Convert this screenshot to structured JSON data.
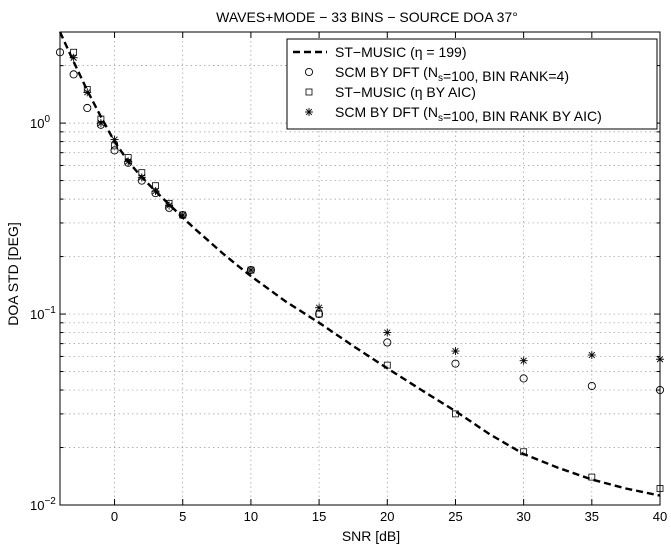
{
  "chart_data": {
    "type": "scatter",
    "title": "WAVES+MODE − 33 BINS − SOURCE DOA 37°",
    "xlabel": "SNR [dB]",
    "ylabel": "DOA STD [DEG]",
    "xlim": [
      -4,
      40
    ],
    "ylim": [
      0.01,
      3
    ],
    "yscale": "log",
    "grid": true,
    "legend_position": "top-right",
    "x_ticks": [
      {
        "value": 0,
        "label": "0"
      },
      {
        "value": 5,
        "label": "5"
      },
      {
        "value": 10,
        "label": "10"
      },
      {
        "value": 15,
        "label": "15"
      },
      {
        "value": 20,
        "label": "20"
      },
      {
        "value": 25,
        "label": "25"
      },
      {
        "value": 30,
        "label": "30"
      },
      {
        "value": 35,
        "label": "35"
      },
      {
        "value": 40,
        "label": "40"
      }
    ],
    "y_ticks": [
      {
        "value": 1,
        "base": "10",
        "exp": "0"
      },
      {
        "value": 0.1,
        "base": "10",
        "exp": "−1"
      },
      {
        "value": 0.01,
        "base": "10",
        "exp": "−2"
      }
    ],
    "series": [
      {
        "name": "ST−MUSIC (η = 199)",
        "legend_parts": [
          {
            "t": "ST−MUSIC (η = 199)"
          }
        ],
        "style": "dashed-line",
        "color": "#000000",
        "x": [
          -4,
          -3,
          -2,
          -1,
          0,
          1,
          2,
          3,
          4,
          5,
          6,
          7,
          8,
          9,
          10,
          12.5,
          15,
          17.5,
          20,
          22.5,
          25,
          27.5,
          30,
          32.5,
          35,
          37.5,
          40
        ],
        "y": [
          3.0,
          2.1,
          1.48,
          1.08,
          0.8,
          0.63,
          0.52,
          0.44,
          0.375,
          0.32,
          0.275,
          0.238,
          0.206,
          0.18,
          0.158,
          0.117,
          0.09,
          0.068,
          0.052,
          0.04,
          0.031,
          0.0235,
          0.0185,
          0.0157,
          0.0136,
          0.0122,
          0.0112
        ]
      },
      {
        "name": "SCM BY DFT (N_s=100, BIN RANK=4)",
        "legend_parts": [
          {
            "t": "SCM BY DFT (N"
          },
          {
            "t": "s",
            "sub": true
          },
          {
            "t": "=100, BIN RANK=4)"
          }
        ],
        "style": "marker",
        "marker": "circle",
        "color": "#000000",
        "x": [
          -4,
          -3,
          -2,
          -1,
          0,
          1,
          2,
          3,
          4,
          5,
          10,
          15,
          20,
          25,
          30,
          35,
          40
        ],
        "y": [
          2.35,
          1.8,
          1.2,
          0.98,
          0.72,
          0.62,
          0.5,
          0.43,
          0.36,
          0.33,
          0.17,
          0.1,
          0.071,
          0.055,
          0.046,
          0.042,
          0.04
        ]
      },
      {
        "name": "ST−MUSIC (η BY AIC)",
        "legend_parts": [
          {
            "t": "ST−MUSIC (η BY AIC)"
          }
        ],
        "style": "marker",
        "marker": "square",
        "color": "#000000",
        "x": [
          -3,
          -2,
          -1,
          0,
          1,
          2,
          3,
          4,
          5,
          10,
          15,
          20,
          25,
          30,
          35,
          40
        ],
        "y": [
          2.35,
          1.5,
          1.05,
          0.76,
          0.66,
          0.55,
          0.47,
          0.38,
          0.33,
          0.17,
          0.1,
          0.054,
          0.03,
          0.019,
          0.014,
          0.0122
        ]
      },
      {
        "name": "SCM BY DFT (N_s=100, BIN RANK BY AIC)",
        "legend_parts": [
          {
            "t": "SCM BY DFT (N"
          },
          {
            "t": "s",
            "sub": true
          },
          {
            "t": "=100, BIN RANK BY AIC)"
          }
        ],
        "style": "marker",
        "marker": "asterisk",
        "color": "#000000",
        "x": [
          -3,
          -2,
          -1,
          0,
          1,
          2,
          3,
          4,
          5,
          10,
          15,
          20,
          25,
          30,
          35,
          40
        ],
        "y": [
          2.2,
          1.45,
          1.0,
          0.82,
          0.63,
          0.52,
          0.44,
          0.37,
          0.33,
          0.17,
          0.108,
          0.08,
          0.064,
          0.057,
          0.061,
          0.058
        ]
      }
    ]
  }
}
